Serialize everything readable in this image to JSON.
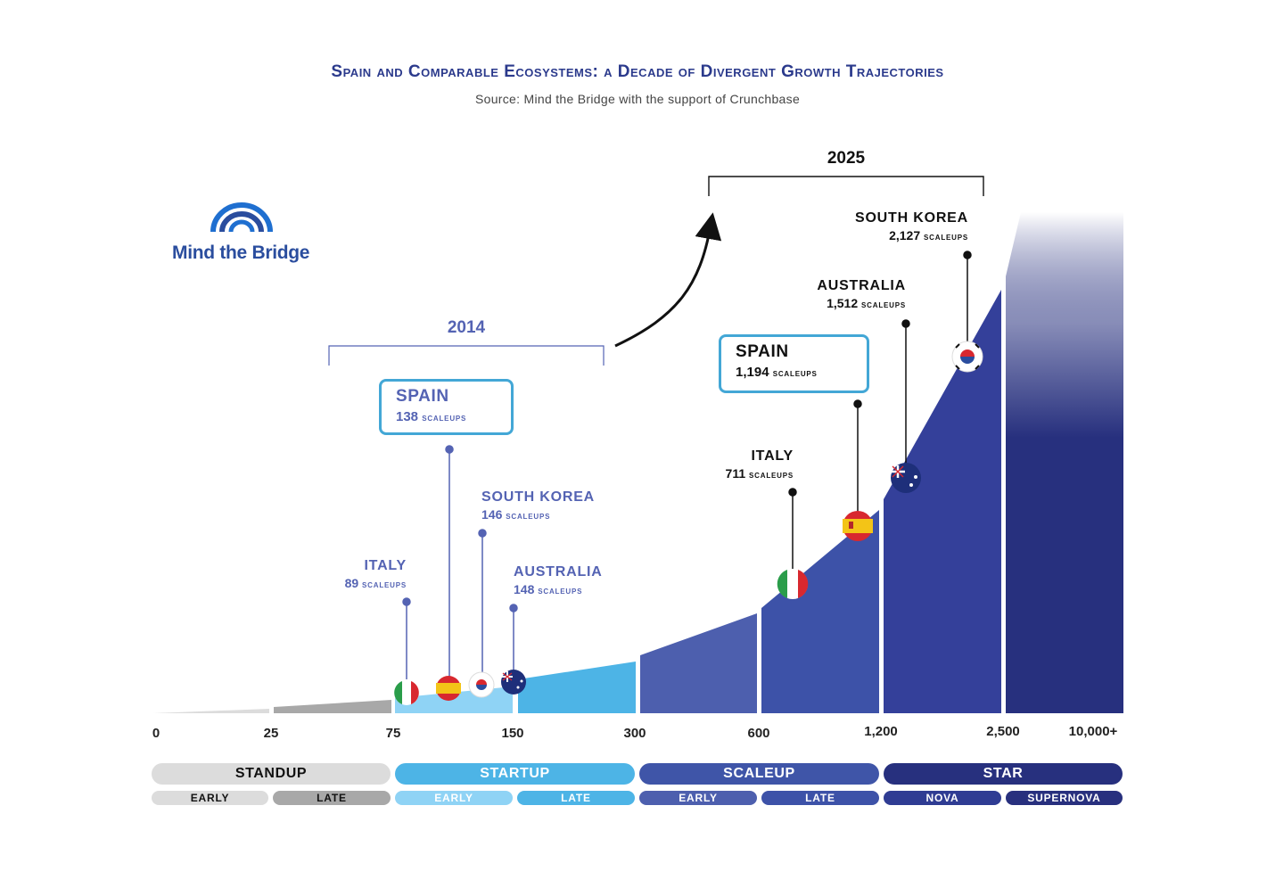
{
  "header": {
    "title": "Spain and Comparable Ecosystems: a Decade of Divergent Growth Trajectories",
    "source": "Source: Mind the Bridge with the support of Crunchbase"
  },
  "logo": {
    "text": "Mind the Bridge"
  },
  "chart_data": {
    "type": "area",
    "title": "Spain and Comparable Ecosystems: a Decade of Divergent Growth Trajectories",
    "xlabel": "",
    "ylabel": "",
    "x_ticks": [
      "0",
      "25",
      "75",
      "150",
      "300",
      "600",
      "1,200",
      "2,500",
      "10,000+"
    ],
    "stages": [
      {
        "name": "STANDUP",
        "sub": [
          "EARLY",
          "LATE"
        ],
        "color": "#dcdcdc",
        "sub_colors": [
          "#dcdcdc",
          "#a8a8a8"
        ]
      },
      {
        "name": "STARTUP",
        "sub": [
          "EARLY",
          "LATE"
        ],
        "color": "#4db4e6",
        "sub_colors": [
          "#8fd3f5",
          "#4db4e6"
        ]
      },
      {
        "name": "SCALEUP",
        "sub": [
          "EARLY",
          "LATE"
        ],
        "color": "#3f55a8",
        "sub_colors": [
          "#4d5fae",
          "#3d52a8"
        ]
      },
      {
        "name": "STAR",
        "sub": [
          "NOVA",
          "SUPERNOVA"
        ],
        "color": "#27307e",
        "sub_colors": [
          "#2f3c93",
          "#28307e"
        ]
      }
    ],
    "periods": [
      {
        "year": "2014",
        "series": [
          {
            "country": "ITALY",
            "scaleups": 89,
            "value_label": "89"
          },
          {
            "country": "SPAIN",
            "scaleups": 138,
            "value_label": "138",
            "highlight": true
          },
          {
            "country": "SOUTH KOREA",
            "scaleups": 146,
            "value_label": "146"
          },
          {
            "country": "AUSTRALIA",
            "scaleups": 148,
            "value_label": "148"
          }
        ]
      },
      {
        "year": "2025",
        "series": [
          {
            "country": "ITALY",
            "scaleups": 711,
            "value_label": "711"
          },
          {
            "country": "SPAIN",
            "scaleups": 1194,
            "value_label": "1,194",
            "highlight": true
          },
          {
            "country": "AUSTRALIA",
            "scaleups": 1512,
            "value_label": "1,512"
          },
          {
            "country": "SOUTH KOREA",
            "scaleups": 2127,
            "value_label": "2,127"
          }
        ]
      }
    ],
    "unit_label": "scaleups"
  },
  "colors": {
    "title": "#2b3a8c",
    "callout_border": "#43a7d6",
    "label_2014": "#5463b3"
  }
}
